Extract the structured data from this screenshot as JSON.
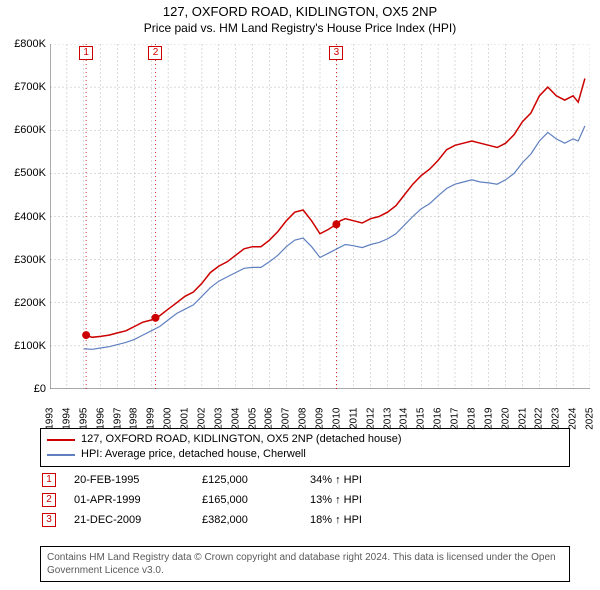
{
  "title_line1": "127, OXFORD ROAD, KIDLINGTON, OX5 2NP",
  "title_line2": "Price paid vs. HM Land Registry's House Price Index (HPI)",
  "chart": {
    "type": "line-dual",
    "x_min": 1993,
    "x_max": 2025,
    "y_min": 0,
    "y_max": 800000,
    "y_step": 100000,
    "y_prefix": "£",
    "y_suffix": "K",
    "x_years": [
      1993,
      1994,
      1995,
      1996,
      1997,
      1998,
      1999,
      2000,
      2001,
      2002,
      2003,
      2004,
      2005,
      2006,
      2007,
      2008,
      2009,
      2010,
      2011,
      2012,
      2013,
      2014,
      2015,
      2016,
      2017,
      2018,
      2019,
      2020,
      2021,
      2022,
      2023,
      2024,
      2025
    ],
    "grid_color": "#b8b8b8",
    "axis_color": "#555555",
    "bg_color": "#ffffff",
    "series_red": {
      "color": "#cc0000",
      "width": 1.5,
      "label": "127, OXFORD ROAD, KIDLINGTON, OX5 2NP (detached house)",
      "points": [
        [
          1995.1,
          125000
        ],
        [
          1995.5,
          120000
        ],
        [
          1996.0,
          122000
        ],
        [
          1996.5,
          125000
        ],
        [
          1997.0,
          130000
        ],
        [
          1997.5,
          135000
        ],
        [
          1998.0,
          145000
        ],
        [
          1998.5,
          155000
        ],
        [
          1999.0,
          160000
        ],
        [
          1999.25,
          165000
        ],
        [
          1999.5,
          170000
        ],
        [
          2000.0,
          185000
        ],
        [
          2000.5,
          200000
        ],
        [
          2001.0,
          215000
        ],
        [
          2001.5,
          225000
        ],
        [
          2002.0,
          245000
        ],
        [
          2002.5,
          270000
        ],
        [
          2003.0,
          285000
        ],
        [
          2003.5,
          295000
        ],
        [
          2004.0,
          310000
        ],
        [
          2004.5,
          325000
        ],
        [
          2005.0,
          330000
        ],
        [
          2005.5,
          330000
        ],
        [
          2006.0,
          345000
        ],
        [
          2006.5,
          365000
        ],
        [
          2007.0,
          390000
        ],
        [
          2007.5,
          410000
        ],
        [
          2008.0,
          415000
        ],
        [
          2008.5,
          390000
        ],
        [
          2009.0,
          360000
        ],
        [
          2009.5,
          370000
        ],
        [
          2009.97,
          382000
        ],
        [
          2010.2,
          390000
        ],
        [
          2010.5,
          395000
        ],
        [
          2011.0,
          390000
        ],
        [
          2011.5,
          385000
        ],
        [
          2012.0,
          395000
        ],
        [
          2012.5,
          400000
        ],
        [
          2013.0,
          410000
        ],
        [
          2013.5,
          425000
        ],
        [
          2014.0,
          450000
        ],
        [
          2014.5,
          475000
        ],
        [
          2015.0,
          495000
        ],
        [
          2015.5,
          510000
        ],
        [
          2016.0,
          530000
        ],
        [
          2016.5,
          555000
        ],
        [
          2017.0,
          565000
        ],
        [
          2017.5,
          570000
        ],
        [
          2018.0,
          575000
        ],
        [
          2018.5,
          570000
        ],
        [
          2019.0,
          565000
        ],
        [
          2019.5,
          560000
        ],
        [
          2020.0,
          570000
        ],
        [
          2020.5,
          590000
        ],
        [
          2021.0,
          620000
        ],
        [
          2021.5,
          640000
        ],
        [
          2022.0,
          680000
        ],
        [
          2022.5,
          700000
        ],
        [
          2023.0,
          680000
        ],
        [
          2023.5,
          670000
        ],
        [
          2024.0,
          680000
        ],
        [
          2024.3,
          665000
        ],
        [
          2024.7,
          720000
        ]
      ]
    },
    "series_blue": {
      "color": "#6080c0",
      "width": 1.2,
      "label": "HPI: Average price, detached house, Cherwell",
      "points": [
        [
          1995.0,
          93000
        ],
        [
          1995.5,
          92000
        ],
        [
          1996.0,
          95000
        ],
        [
          1996.5,
          98000
        ],
        [
          1997.0,
          103000
        ],
        [
          1997.5,
          108000
        ],
        [
          1998.0,
          115000
        ],
        [
          1998.5,
          125000
        ],
        [
          1999.0,
          135000
        ],
        [
          1999.5,
          145000
        ],
        [
          2000.0,
          160000
        ],
        [
          2000.5,
          175000
        ],
        [
          2001.0,
          185000
        ],
        [
          2001.5,
          195000
        ],
        [
          2002.0,
          215000
        ],
        [
          2002.5,
          235000
        ],
        [
          2003.0,
          250000
        ],
        [
          2003.5,
          260000
        ],
        [
          2004.0,
          270000
        ],
        [
          2004.5,
          280000
        ],
        [
          2005.0,
          282000
        ],
        [
          2005.5,
          282000
        ],
        [
          2006.0,
          295000
        ],
        [
          2006.5,
          310000
        ],
        [
          2007.0,
          330000
        ],
        [
          2007.5,
          345000
        ],
        [
          2008.0,
          350000
        ],
        [
          2008.5,
          330000
        ],
        [
          2009.0,
          305000
        ],
        [
          2009.5,
          315000
        ],
        [
          2010.0,
          325000
        ],
        [
          2010.5,
          335000
        ],
        [
          2011.0,
          332000
        ],
        [
          2011.5,
          328000
        ],
        [
          2012.0,
          335000
        ],
        [
          2012.5,
          340000
        ],
        [
          2013.0,
          348000
        ],
        [
          2013.5,
          360000
        ],
        [
          2014.0,
          380000
        ],
        [
          2014.5,
          400000
        ],
        [
          2015.0,
          418000
        ],
        [
          2015.5,
          430000
        ],
        [
          2016.0,
          448000
        ],
        [
          2016.5,
          465000
        ],
        [
          2017.0,
          475000
        ],
        [
          2017.5,
          480000
        ],
        [
          2018.0,
          485000
        ],
        [
          2018.5,
          480000
        ],
        [
          2019.0,
          478000
        ],
        [
          2019.5,
          475000
        ],
        [
          2020.0,
          485000
        ],
        [
          2020.5,
          500000
        ],
        [
          2021.0,
          525000
        ],
        [
          2021.5,
          545000
        ],
        [
          2022.0,
          575000
        ],
        [
          2022.5,
          595000
        ],
        [
          2023.0,
          580000
        ],
        [
          2023.5,
          570000
        ],
        [
          2024.0,
          580000
        ],
        [
          2024.3,
          575000
        ],
        [
          2024.7,
          610000
        ]
      ]
    },
    "sale_markers": [
      {
        "n": "1",
        "year": 1995.14,
        "color": "#cc0000"
      },
      {
        "n": "2",
        "year": 1999.25,
        "color": "#cc0000"
      },
      {
        "n": "3",
        "year": 2009.97,
        "color": "#cc0000"
      }
    ],
    "sale_dots": [
      {
        "year": 1995.14,
        "value": 125000
      },
      {
        "year": 1999.25,
        "value": 165000
      },
      {
        "year": 2009.97,
        "value": 382000
      }
    ],
    "marker_line_color": "#cc0000",
    "dot_color": "#cc0000",
    "dot_radius": 4
  },
  "sales": [
    {
      "n": "1",
      "date": "20-FEB-1995",
      "price": "£125,000",
      "hpi": "34% ↑ HPI"
    },
    {
      "n": "2",
      "date": "01-APR-1999",
      "price": "£165,000",
      "hpi": "13% ↑ HPI"
    },
    {
      "n": "3",
      "date": "21-DEC-2009",
      "price": "£382,000",
      "hpi": "18% ↑ HPI"
    }
  ],
  "attribution": "Contains HM Land Registry data © Crown copyright and database right 2024. This data is licensed under the Open Government Licence v3.0."
}
